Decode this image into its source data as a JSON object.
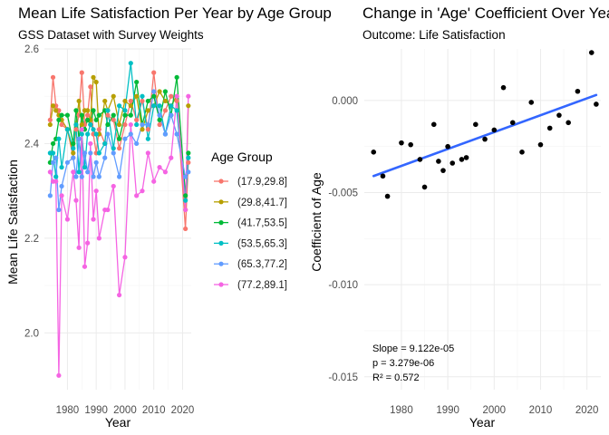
{
  "chart_data": [
    {
      "type": "line",
      "title": "Mean Life Satisfaction Per Year by Age Group",
      "subtitle": "GSS Dataset with Survey Weights",
      "xlabel": "Year",
      "ylabel": "Mean Life Satisfaction",
      "xlim": [
        1972,
        2023
      ],
      "ylim": [
        1.88,
        2.6
      ],
      "x_ticks": [
        1980,
        1990,
        2000,
        2010,
        2020
      ],
      "y_ticks": [
        2.0,
        2.2,
        2.4,
        2.6
      ],
      "x_tick_labels": [
        "1980",
        "1990",
        "2000",
        "2010",
        "2020"
      ],
      "y_tick_labels": [
        "2.0",
        "2.2",
        "2.4",
        "2.6"
      ],
      "grid": true,
      "legend_title": "Age Group",
      "legend_position": "right",
      "x": [
        1974,
        1975,
        1976,
        1977,
        1978,
        1980,
        1982,
        1983,
        1984,
        1985,
        1986,
        1987,
        1988,
        1989,
        1990,
        1991,
        1993,
        1994,
        1996,
        1998,
        2000,
        2002,
        2004,
        2006,
        2008,
        2010,
        2012,
        2014,
        2016,
        2018,
        2021,
        2022
      ],
      "series": [
        {
          "name": "(17.9,29.8]",
          "color": "#F8766D",
          "values": [
            2.45,
            2.54,
            2.48,
            2.47,
            2.44,
            2.43,
            2.37,
            2.43,
            2.46,
            2.55,
            2.44,
            2.46,
            2.52,
            2.42,
            2.38,
            2.43,
            2.4,
            2.46,
            2.45,
            2.39,
            2.44,
            2.49,
            2.45,
            2.49,
            2.43,
            2.55,
            2.44,
            2.47,
            2.5,
            2.49,
            2.22,
            2.36
          ]
        },
        {
          "name": "(29.8,41.7]",
          "color": "#B79F00",
          "values": [
            2.44,
            2.48,
            2.47,
            2.46,
            2.45,
            2.43,
            2.38,
            2.44,
            2.49,
            2.44,
            2.47,
            2.47,
            2.45,
            2.54,
            2.53,
            2.42,
            2.49,
            2.47,
            2.5,
            2.44,
            2.49,
            2.48,
            2.5,
            2.43,
            2.47,
            2.48,
            2.51,
            2.49,
            2.48,
            2.5,
            2.26,
            2.48
          ]
        },
        {
          "name": "(41.7,53.5]",
          "color": "#00BA38",
          "values": [
            2.36,
            2.4,
            2.41,
            2.45,
            2.46,
            2.46,
            2.4,
            2.47,
            2.41,
            2.46,
            2.43,
            2.45,
            2.44,
            2.47,
            2.45,
            2.46,
            2.47,
            2.44,
            2.46,
            2.41,
            2.46,
            2.46,
            2.53,
            2.44,
            2.49,
            2.5,
            2.45,
            2.51,
            2.46,
            2.54,
            2.29,
            2.38
          ]
        },
        {
          "name": "(53.5,65.3]",
          "color": "#00BFC4",
          "values": [
            2.38,
            2.38,
            2.33,
            2.41,
            2.35,
            2.43,
            2.39,
            2.44,
            2.34,
            2.42,
            2.35,
            2.42,
            2.44,
            2.43,
            2.42,
            2.38,
            2.4,
            2.47,
            2.39,
            2.48,
            2.47,
            2.57,
            2.44,
            2.5,
            2.41,
            2.48,
            2.48,
            2.42,
            2.48,
            2.47,
            2.28,
            2.37
          ]
        },
        {
          "name": "(65.3,77.2]",
          "color": "#619CFF",
          "values": [
            2.29,
            2.36,
            2.37,
            2.26,
            2.31,
            2.36,
            2.37,
            2.33,
            2.41,
            2.33,
            2.38,
            2.34,
            2.38,
            2.33,
            2.36,
            2.33,
            2.37,
            2.42,
            2.38,
            2.33,
            2.41,
            2.42,
            2.4,
            2.44,
            2.44,
            2.51,
            2.46,
            2.42,
            2.46,
            2.42,
            2.33,
            2.34
          ]
        },
        {
          "name": "(77.2,89.1]",
          "color": "#F564E3",
          "values": [
            2.34,
            2.32,
            2.32,
            1.91,
            2.29,
            2.24,
            2.34,
            2.28,
            2.18,
            2.43,
            2.14,
            2.19,
            2.4,
            2.24,
            2.3,
            2.2,
            2.26,
            2.26,
            2.31,
            2.08,
            2.16,
            2.44,
            2.29,
            2.3,
            2.38,
            2.32,
            2.35,
            2.34,
            2.37,
            2.5,
            2.26,
            2.5
          ]
        }
      ]
    },
    {
      "type": "scatter",
      "title": "Change in 'Age' Coefficient Over Years",
      "subtitle": "Outcome: Life Satisfaction",
      "xlabel": "Year",
      "ylabel": "Coefficient of Age",
      "xlim": [
        1972,
        2023
      ],
      "ylim": [
        -0.0157,
        0.0028
      ],
      "x_ticks": [
        1980,
        1990,
        2000,
        2010,
        2020
      ],
      "y_ticks": [
        -0.015,
        -0.01,
        -0.005,
        0.0
      ],
      "x_tick_labels": [
        "1980",
        "1990",
        "2000",
        "2010",
        "2020"
      ],
      "y_tick_labels": [
        "-0.015",
        "-0.010",
        "-0.005",
        "0.000"
      ],
      "grid": true,
      "points_color": "#000000",
      "x": [
        1974,
        1976,
        1977,
        1980,
        1982,
        1984,
        1985,
        1987,
        1988,
        1989,
        1990,
        1991,
        1993,
        1994,
        1996,
        1998,
        2000,
        2002,
        2004,
        2006,
        2008,
        2010,
        2012,
        2014,
        2016,
        2018,
        2021,
        2022
      ],
      "y": [
        -0.0028,
        -0.0041,
        -0.0052,
        -0.0023,
        -0.0024,
        -0.0032,
        -0.0047,
        -0.0013,
        -0.0033,
        -0.0038,
        -0.0025,
        -0.0034,
        -0.0032,
        -0.0031,
        -0.0013,
        -0.0021,
        -0.0016,
        0.0007,
        -0.0012,
        -0.0028,
        -0.0001,
        -0.0024,
        -0.0015,
        -0.0008,
        -0.0012,
        0.0005,
        0.0026,
        -0.0002
      ],
      "trend": {
        "color": "#3366FF",
        "x": [
          1974,
          2022
        ],
        "y": [
          -0.0041,
          0.0003
        ]
      },
      "annotations": [
        "Slope = 9.122e-05",
        "p = 3.279e-06",
        "R² = 0.572"
      ]
    }
  ]
}
